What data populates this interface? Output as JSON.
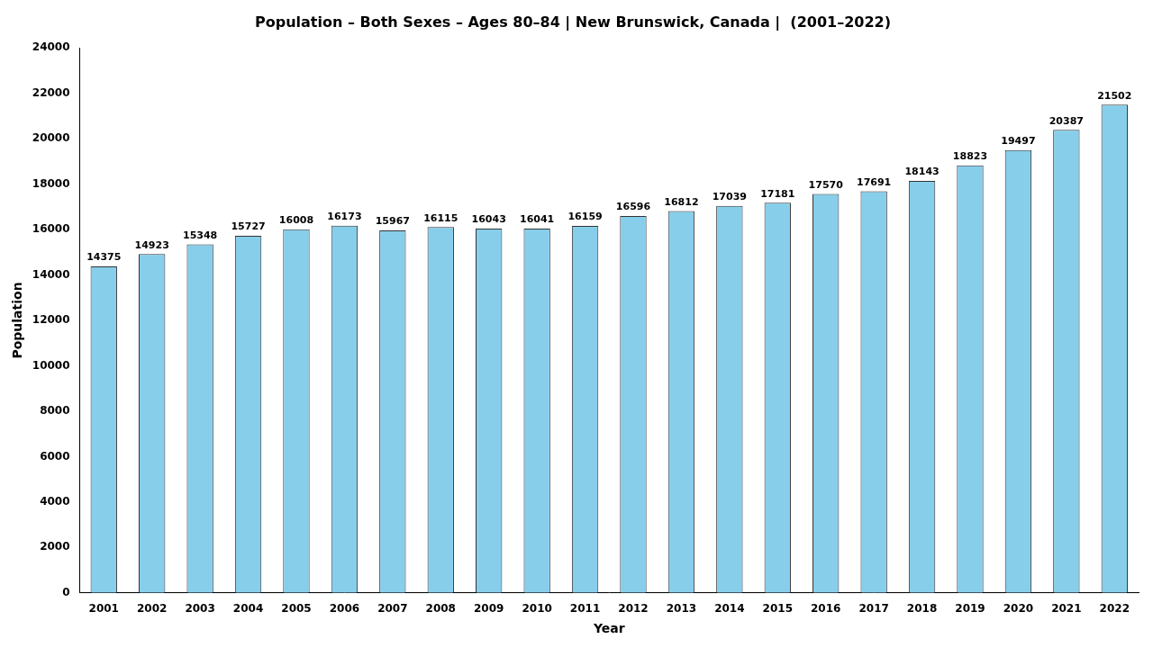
{
  "chart_data": {
    "type": "bar",
    "title": "Population – Both Sexes – Ages 80–84 | New Brunswick, Canada |  (2001–2022)",
    "x_label": "Year",
    "y_label": "Population",
    "categories": [
      "2001",
      "2002",
      "2003",
      "2004",
      "2005",
      "2006",
      "2007",
      "2008",
      "2009",
      "2010",
      "2011",
      "2012",
      "2013",
      "2014",
      "2015",
      "2016",
      "2017",
      "2018",
      "2019",
      "2020",
      "2021",
      "2022"
    ],
    "values": [
      14375,
      14923,
      15348,
      15727,
      16008,
      16173,
      15967,
      16115,
      16043,
      16041,
      16159,
      16596,
      16812,
      17039,
      17181,
      17570,
      17691,
      18143,
      18823,
      19497,
      20387,
      21502
    ],
    "color": "#87CEEB",
    "ylim": [
      0,
      24000
    ],
    "yticks": [
      0,
      2000,
      4000,
      6000,
      8000,
      10000,
      12000,
      14000,
      16000,
      18000,
      20000,
      22000,
      24000
    ],
    "grid": false,
    "data_labels": true
  }
}
